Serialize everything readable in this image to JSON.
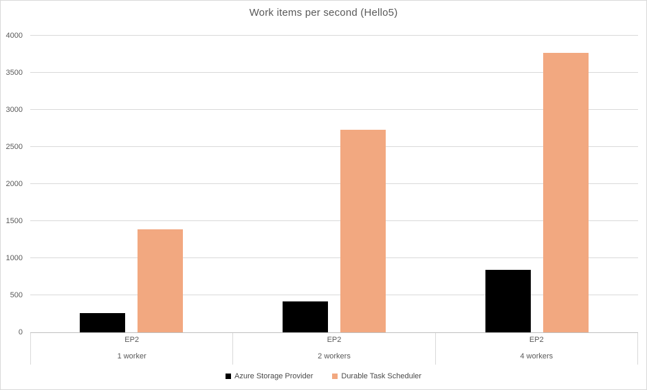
{
  "chart_data": {
    "type": "bar",
    "title": "Work items per second (Hello5)",
    "xlabel": "",
    "ylabel": "",
    "ylim": [
      0,
      4000
    ],
    "ytick_step": 500,
    "grid": "horizontal",
    "legend_position": "bottom-center",
    "groups": [
      {
        "top_label": "EP2",
        "bottom_label": "1 worker"
      },
      {
        "top_label": "EP2",
        "bottom_label": "2 workers"
      },
      {
        "top_label": "EP2",
        "bottom_label": "4 workers"
      }
    ],
    "series": [
      {
        "name": "Azure Storage Provider",
        "color": "#000000",
        "values": [
          260,
          420,
          840
        ]
      },
      {
        "name": "Durable Task Scheduler",
        "color": "#f2a880",
        "values": [
          1390,
          2730,
          3770
        ]
      }
    ]
  },
  "colors": {
    "background": "#ffffff",
    "chart_border": "#d9d9d9",
    "gridline": "#d9d9d9",
    "axis_line": "#bfbfbf",
    "text": "#595959",
    "series_azure_storage": "#000000",
    "series_durable_task_scheduler": "#f2a880"
  }
}
